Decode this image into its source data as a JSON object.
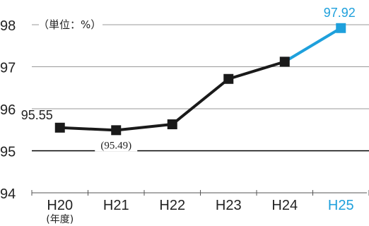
{
  "chart_data": {
    "type": "line",
    "unit_label": "（単位：%）",
    "categories": [
      "H20",
      "H21",
      "H22",
      "H23",
      "H24",
      "H25"
    ],
    "x_sub_label": "(年度)",
    "values": [
      95.55,
      95.49,
      95.63,
      96.71,
      97.12,
      97.92
    ],
    "data_labels": [
      {
        "index": 0,
        "text": "95.55"
      },
      {
        "index": 1,
        "text": "(95.49)"
      },
      {
        "index": 5,
        "text": "97.92"
      }
    ],
    "ylim": [
      94,
      98
    ],
    "yticks": [
      "94",
      "95",
      "96",
      "97",
      "98"
    ],
    "highlight_index": 5,
    "grid": true,
    "colors": {
      "line": "#1a1a1a",
      "highlight": "#1ea0dc",
      "grid": "#9a9a9a",
      "reference_line": "#000000"
    }
  }
}
